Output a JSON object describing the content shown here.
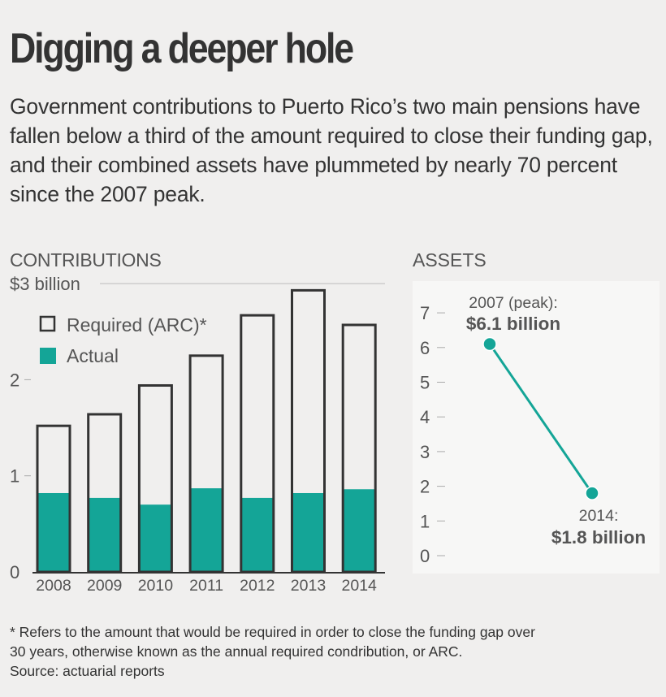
{
  "title": "Digging a deeper hole",
  "subtitle": "Government contributions to Puerto Rico’s two main pensions have fallen below a third of the amount required to close their funding gap, and their combined assets have plummeted by nearly 70 percent since the 2007 peak.",
  "footnote": {
    "lines": [
      "* Refers to the amount that would be required in order to close the funding gap over",
      "30 years, otherwise known as the annual required condribution, or ARC.",
      "Source: actuarial reports"
    ]
  },
  "colors": {
    "actual": "#14a597",
    "required_outline": "#333333",
    "assets_line": "#14a597",
    "assets_panel": "#f7f7f6",
    "background": "#f0efee"
  },
  "chart_data": [
    {
      "type": "bar",
      "title": "CONTRIBUTIONS",
      "categories": [
        "2008",
        "2009",
        "2010",
        "2011",
        "2012",
        "2013",
        "2014"
      ],
      "series": [
        {
          "name": "Required (ARC)*",
          "values": [
            1.52,
            1.64,
            1.94,
            2.25,
            2.67,
            2.93,
            2.57
          ]
        },
        {
          "name": "Actual",
          "values": [
            0.82,
            0.77,
            0.7,
            0.87,
            0.77,
            0.82,
            0.86
          ]
        }
      ],
      "ylim": [
        0,
        3
      ],
      "yticks": [
        {
          "value": 0,
          "label": "0"
        },
        {
          "value": 1,
          "label": "1"
        },
        {
          "value": 2,
          "label": "2"
        },
        {
          "value": 3,
          "label": "$3 billion"
        }
      ],
      "overlay": true,
      "legend_position": "top-left",
      "grid": false
    },
    {
      "type": "line",
      "title": "ASSETS",
      "points": [
        {
          "x": "2007",
          "y": 6.1,
          "label_line1": "2007 (peak):",
          "label_line2": "$6.1 billion"
        },
        {
          "x": "2014",
          "y": 1.8,
          "label_line1": "2014:",
          "label_line2": "$1.8 billion"
        }
      ],
      "ylim": [
        0,
        7
      ],
      "yticks": [
        "0",
        "1",
        "2",
        "3",
        "4",
        "5",
        "6",
        "7"
      ]
    }
  ]
}
